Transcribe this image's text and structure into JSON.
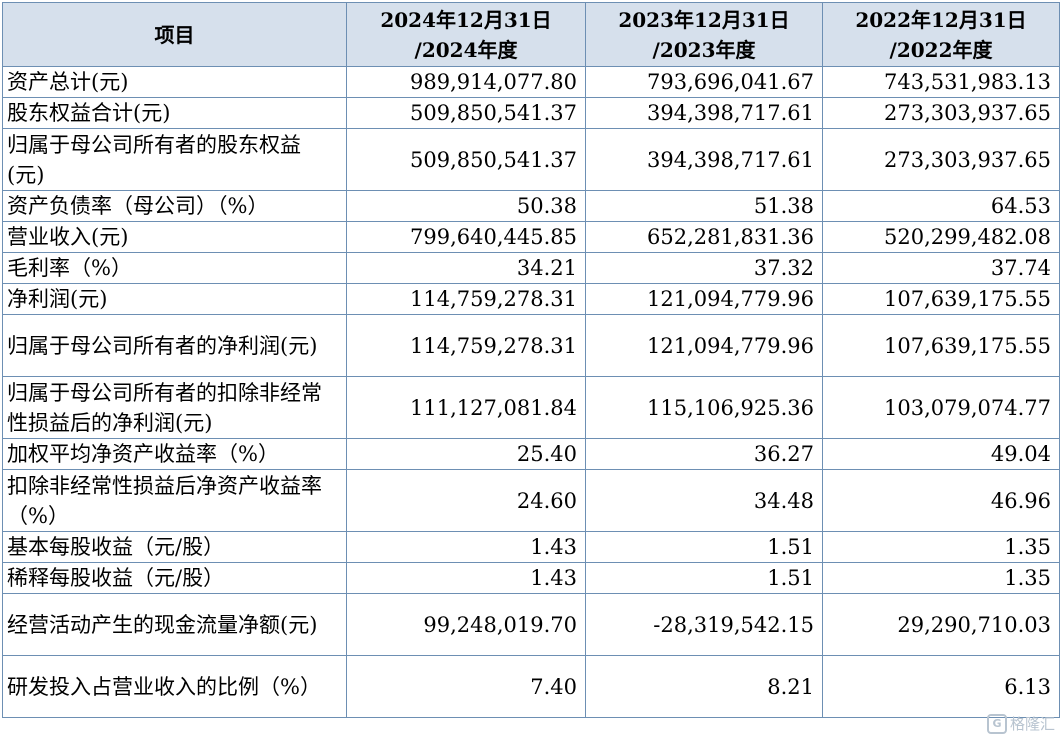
{
  "table": {
    "headers": [
      "项目",
      "2024年12月31日 /2024年度",
      "2023年12月31日 /2023年度",
      "2022年12月31日 /2022年度"
    ],
    "header_lines": [
      [
        "项目"
      ],
      [
        "2024年12月31日",
        "/2024年度"
      ],
      [
        "2023年12月31日",
        "/2023年度"
      ],
      [
        "2022年12月31日",
        "/2022年度"
      ]
    ],
    "rows": [
      {
        "label": "资产总计(元)",
        "values": [
          "989,914,077.80",
          "793,696,041.67",
          "743,531,983.13"
        ]
      },
      {
        "label": "股东权益合计(元)",
        "values": [
          "509,850,541.37",
          "394,398,717.61",
          "273,303,937.65"
        ]
      },
      {
        "label": "归属于母公司所有者的股东权益(元)",
        "values": [
          "509,850,541.37",
          "394,398,717.61",
          "273,303,937.65"
        ]
      },
      {
        "label": "资产负债率（母公司）（%）",
        "values": [
          "50.38",
          "51.38",
          "64.53"
        ]
      },
      {
        "label": "营业收入(元)",
        "values": [
          "799,640,445.85",
          "652,281,831.36",
          "520,299,482.08"
        ]
      },
      {
        "label": "毛利率（%）",
        "values": [
          "34.21",
          "37.32",
          "37.74"
        ]
      },
      {
        "label": "净利润(元)",
        "values": [
          "114,759,278.31",
          "121,094,779.96",
          "107,639,175.55"
        ]
      },
      {
        "label": "归属于母公司所有者的净利润(元)",
        "values": [
          "114,759,278.31",
          "121,094,779.96",
          "107,639,175.55"
        ]
      },
      {
        "label": "归属于母公司所有者的扣除非经常性损益后的净利润(元)",
        "values": [
          "111,127,081.84",
          "115,106,925.36",
          "103,079,074.77"
        ]
      },
      {
        "label": "加权平均净资产收益率（%）",
        "values": [
          "25.40",
          "36.27",
          "49.04"
        ]
      },
      {
        "label": "扣除非经常性损益后净资产收益率（%）",
        "values": [
          "24.60",
          "34.48",
          "46.96"
        ]
      },
      {
        "label": "基本每股收益（元/股）",
        "values": [
          "1.43",
          "1.51",
          "1.35"
        ]
      },
      {
        "label": "稀释每股收益（元/股）",
        "values": [
          "1.43",
          "1.51",
          "1.35"
        ]
      },
      {
        "label": "经营活动产生的现金流量净额(元)",
        "values": [
          "99,248,019.70",
          "-28,319,542.15",
          "29,290,710.03"
        ]
      },
      {
        "label": "研发投入占营业收入的比例（%）",
        "values": [
          "7.40",
          "8.21",
          "6.13"
        ]
      }
    ]
  },
  "watermark": {
    "mark": "G",
    "text": "格隆汇"
  }
}
